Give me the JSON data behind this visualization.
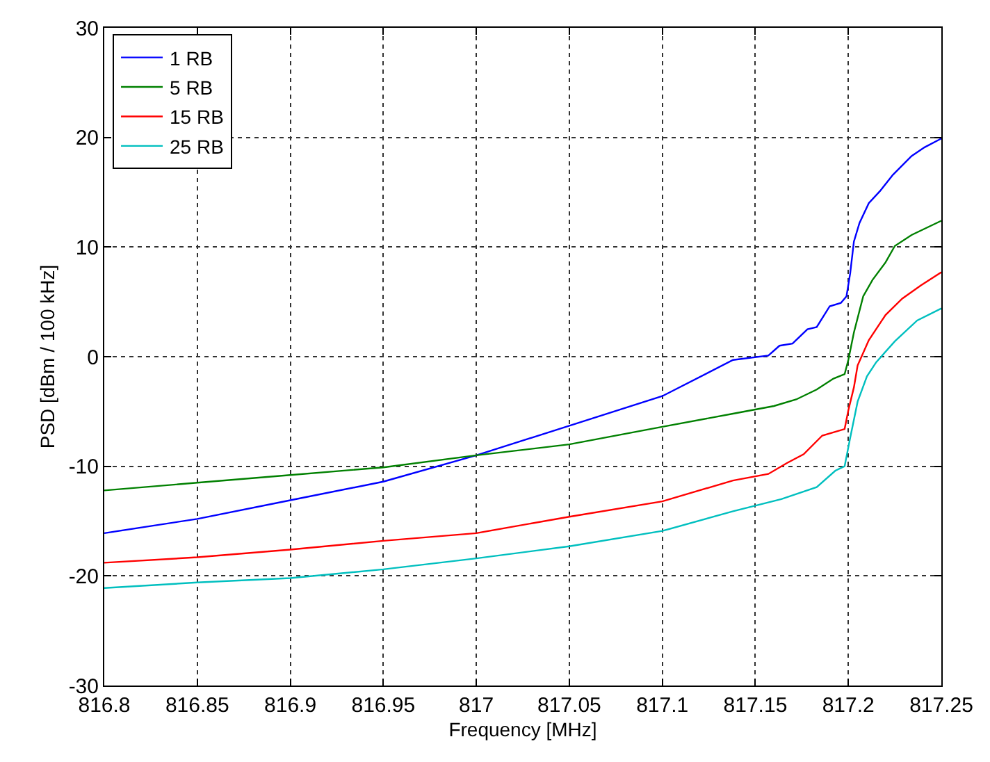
{
  "chart_data": {
    "type": "line",
    "xlabel": "Frequency [MHz]",
    "ylabel": "PSD [dBm / 100 kHz]",
    "xlim": [
      816.8,
      817.25
    ],
    "xticks": [
      816.8,
      816.85,
      816.9,
      816.95,
      817,
      817.05,
      817.1,
      817.15,
      817.2,
      817.25
    ],
    "ylim": [
      -30,
      30
    ],
    "yticks": [
      -30,
      -20,
      -10,
      0,
      10,
      20,
      30
    ],
    "grid": true,
    "legend": "top left",
    "line_style": "solid",
    "marker": "none",
    "series": [
      {
        "name": "1 RB",
        "color": "#0000ff",
        "x": [
          816.8,
          816.85,
          816.9,
          816.95,
          817.0,
          817.05,
          817.1,
          817.138,
          817.157,
          817.163,
          817.17,
          817.178,
          817.183,
          817.19,
          817.196,
          817.199,
          817.201,
          817.203,
          817.206,
          817.211,
          817.217,
          817.224,
          817.234,
          817.241,
          817.25
        ],
        "values": [
          -16.1,
          -14.8,
          -13.1,
          -11.4,
          -9.0,
          -6.3,
          -3.6,
          -0.3,
          0.1,
          1.0,
          1.2,
          2.5,
          2.7,
          4.6,
          4.9,
          5.5,
          7.6,
          10.5,
          12.2,
          14.0,
          15.1,
          16.6,
          18.3,
          19.1,
          19.9
        ]
      },
      {
        "name": "5 RB",
        "color": "#008000",
        "x": [
          816.8,
          816.85,
          816.9,
          816.95,
          817.0,
          817.05,
          817.1,
          817.138,
          817.16,
          817.172,
          817.183,
          817.192,
          817.198,
          817.2,
          817.203,
          817.208,
          817.213,
          817.22,
          817.225,
          817.234,
          817.25
        ],
        "values": [
          -12.2,
          -11.5,
          -10.8,
          -10.1,
          -9.0,
          -8.0,
          -6.4,
          -5.2,
          -4.5,
          -3.9,
          -3.0,
          -2.0,
          -1.6,
          -0.3,
          2.2,
          5.5,
          7.0,
          8.6,
          10.1,
          11.1,
          12.4
        ]
      },
      {
        "name": "15 RB",
        "color": "#ff0000",
        "x": [
          816.8,
          816.85,
          816.9,
          816.95,
          817.0,
          817.05,
          817.1,
          817.138,
          817.157,
          817.167,
          817.176,
          817.186,
          817.198,
          817.2,
          817.203,
          817.205,
          817.211,
          817.22,
          817.229,
          817.239,
          817.25
        ],
        "values": [
          -18.8,
          -18.3,
          -17.6,
          -16.8,
          -16.1,
          -14.6,
          -13.2,
          -11.3,
          -10.7,
          -9.7,
          -8.9,
          -7.2,
          -6.6,
          -4.9,
          -2.8,
          -0.8,
          1.5,
          3.8,
          5.3,
          6.5,
          7.7
        ]
      },
      {
        "name": "25 RB",
        "color": "#00bfbf",
        "x": [
          816.8,
          816.85,
          816.9,
          816.95,
          817.0,
          817.05,
          817.1,
          817.138,
          817.164,
          817.183,
          817.193,
          817.198,
          817.201,
          817.205,
          817.21,
          817.215,
          817.225,
          817.237,
          817.25
        ],
        "values": [
          -21.1,
          -20.6,
          -20.2,
          -19.4,
          -18.4,
          -17.3,
          -15.9,
          -14.1,
          -13.0,
          -11.9,
          -10.4,
          -10.0,
          -7.4,
          -4.1,
          -1.8,
          -0.5,
          1.4,
          3.3,
          4.4
        ]
      }
    ]
  }
}
